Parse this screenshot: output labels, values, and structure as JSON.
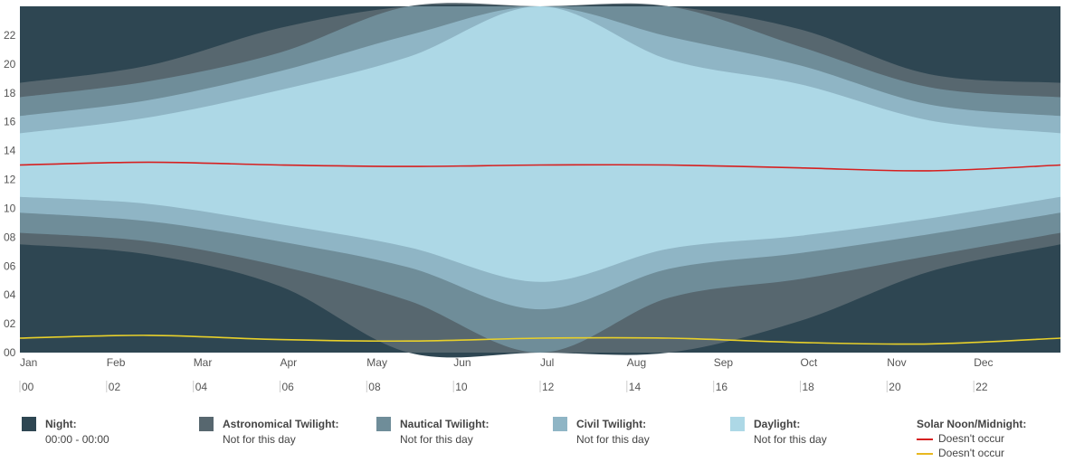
{
  "chart_data": {
    "type": "area",
    "title": "",
    "xlabel": "",
    "ylabel": "",
    "ylim": [
      0,
      24
    ],
    "y_ticks": [
      "00",
      "02",
      "04",
      "06",
      "08",
      "10",
      "12",
      "14",
      "16",
      "18",
      "20",
      "22"
    ],
    "month_labels": [
      "Jan",
      "Feb",
      "Mar",
      "Apr",
      "May",
      "Jun",
      "Jul",
      "Aug",
      "Sep",
      "Oct",
      "Nov",
      "Dec"
    ],
    "hour_labels": [
      "00",
      "02",
      "04",
      "06",
      "08",
      "10",
      "12",
      "14",
      "16",
      "18",
      "20",
      "22"
    ],
    "colors": {
      "night": "#2e4652",
      "astronomical": "#57676f",
      "nautical": "#6f8d99",
      "civil": "#8fb5c5",
      "daylight": "#add8e6",
      "solar_noon": "#d62020",
      "solar_midnight": "#e8d02a"
    },
    "x": [
      1,
      46,
      92,
      137,
      183,
      228,
      274,
      319,
      365
    ],
    "series": [
      {
        "key": "night_end",
        "values": [
          7.5,
          6.8,
          4.6,
          0.0,
          0.0,
          0.0,
          2.2,
          5.6,
          7.5
        ]
      },
      {
        "key": "astronomical_end",
        "values": [
          8.3,
          7.7,
          6.0,
          3.6,
          0.0,
          3.8,
          5.1,
          6.7,
          8.3
        ]
      },
      {
        "key": "nautical_end",
        "values": [
          9.7,
          9.1,
          7.7,
          5.9,
          3.0,
          5.8,
          6.9,
          8.2,
          9.7
        ]
      },
      {
        "key": "civil_end",
        "values": [
          10.8,
          10.3,
          8.9,
          7.3,
          4.9,
          7.2,
          8.1,
          9.3,
          10.8
        ]
      },
      {
        "key": "daylight_end",
        "values": [
          15.2,
          16.3,
          18.2,
          20.5,
          24.0,
          20.3,
          18.6,
          16.1,
          15.2
        ]
      },
      {
        "key": "civil_end_evening",
        "values": [
          16.4,
          17.5,
          19.5,
          22.0,
          24.0,
          21.9,
          19.9,
          17.2,
          16.4
        ]
      },
      {
        "key": "nautical_end_evening",
        "values": [
          17.7,
          18.8,
          20.8,
          24.0,
          24.0,
          24.0,
          21.2,
          18.4,
          17.7
        ]
      },
      {
        "key": "astronomical_end_evening",
        "values": [
          18.7,
          19.9,
          22.5,
          24.0,
          24.0,
          24.0,
          22.4,
          19.3,
          18.7
        ]
      },
      {
        "key": "solar_noon",
        "values": [
          13.0,
          13.2,
          13.0,
          12.9,
          13.0,
          13.0,
          12.8,
          12.6,
          13.0
        ]
      },
      {
        "key": "solar_midnight",
        "values": [
          1.0,
          1.2,
          0.9,
          0.8,
          1.0,
          1.0,
          0.7,
          0.6,
          1.0
        ]
      }
    ]
  },
  "legend": {
    "night": {
      "label": "Night:",
      "value": "00:00 - 00:00"
    },
    "astronomical": {
      "label": "Astronomical Twilight:",
      "value": "Not for this day"
    },
    "nautical": {
      "label": "Nautical Twilight:",
      "value": "Not for this day"
    },
    "civil": {
      "label": "Civil Twilight:",
      "value": "Not for this day"
    },
    "daylight": {
      "label": "Daylight:",
      "value": "Not for this day"
    },
    "solar": {
      "label": "Solar Noon/Midnight:",
      "noon_value": "Doesn't occur",
      "midnight_value": "Doesn't occur"
    }
  }
}
